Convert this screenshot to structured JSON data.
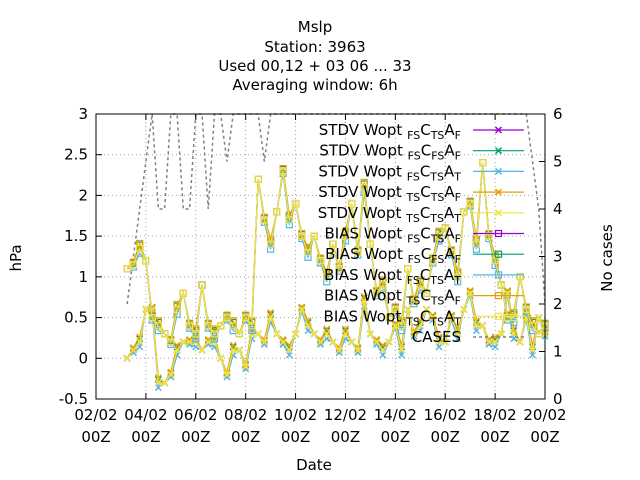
{
  "title_lines": [
    "Mslp",
    "Station:     3963",
    "Used  00,12  + 03 06 ... 33",
    "Averaging window:  6h"
  ],
  "chart_data": {
    "type": "line",
    "title": "Mslp",
    "xlabel": "Date",
    "ylabel": "hPa",
    "y2label": "No cases",
    "xlim": [
      0,
      18
    ],
    "ylim": [
      -0.5,
      3
    ],
    "y2lim": [
      0,
      6
    ],
    "x_unit": "days since 02/02 00Z",
    "xticks": [
      0,
      2,
      4,
      6,
      8,
      10,
      12,
      14,
      16,
      18
    ],
    "xtick_labels": [
      [
        "02/02",
        "00Z"
      ],
      [
        "04/02",
        "00Z"
      ],
      [
        "06/02",
        "00Z"
      ],
      [
        "08/02",
        "00Z"
      ],
      [
        "10/02",
        "00Z"
      ],
      [
        "12/02",
        "00Z"
      ],
      [
        "14/02",
        "00Z"
      ],
      [
        "16/02",
        "00Z"
      ],
      [
        "18/02",
        "00Z"
      ],
      [
        "20/02",
        "00Z"
      ]
    ],
    "yticks": [
      -0.5,
      0,
      0.5,
      1,
      1.5,
      2,
      2.5,
      3
    ],
    "ytick_labels": [
      "-0.5",
      "0",
      "0.5",
      "1",
      "1.5",
      "2",
      "2.5",
      "3"
    ],
    "y2ticks": [
      0,
      1,
      2,
      3,
      4,
      5,
      6
    ],
    "y2tick_labels": [
      "0",
      "1",
      "2",
      "3",
      "4",
      "5",
      "6"
    ],
    "grid": true,
    "legend_position": "top-right",
    "series": [
      {
        "name": "STDV Wopt FS CTS AF",
        "sub": [
          "FS",
          "TS",
          "F"
        ],
        "color": "#9400d3",
        "marker": "x",
        "axis": "y1"
      },
      {
        "name": "STDV Wopt FS CFS AF",
        "sub": [
          "FS",
          "FS",
          "F"
        ],
        "color": "#009e73",
        "marker": "x",
        "axis": "y1"
      },
      {
        "name": "STDV Wopt FS CTS AT",
        "sub": [
          "FS",
          "TS",
          "T"
        ],
        "color": "#56b4e9",
        "marker": "x",
        "axis": "y1"
      },
      {
        "name": "STDV Wopt TS CTS AF",
        "sub": [
          "TS",
          "TS",
          "F"
        ],
        "color": "#e69f00",
        "marker": "x",
        "axis": "y1"
      },
      {
        "name": "STDV Wopt TS CTS AT",
        "sub": [
          "TS",
          "TS",
          "T"
        ],
        "color": "#f0e442",
        "marker": "x",
        "axis": "y1"
      },
      {
        "name": "BIAS Wopt FS CTS AF",
        "sub": [
          "FS",
          "TS",
          "F"
        ],
        "color": "#9400d3",
        "marker": "s",
        "axis": "y1"
      },
      {
        "name": "BIAS Wopt FS CFS AF",
        "sub": [
          "FS",
          "FS",
          "F"
        ],
        "color": "#009e73",
        "marker": "s",
        "axis": "y1"
      },
      {
        "name": "BIAS Wopt FS CTS AT",
        "sub": [
          "FS",
          "TS",
          "T"
        ],
        "color": "#56b4e9",
        "marker": "s",
        "axis": "y1"
      },
      {
        "name": "BIAS Wopt TS CTS AF",
        "sub": [
          "TS",
          "TS",
          "F"
        ],
        "color": "#e69f00",
        "marker": "s",
        "axis": "y1"
      },
      {
        "name": "BIAS Wopt TS CTS AT",
        "sub": [
          "TS",
          "TS",
          "T"
        ],
        "color": "#f0e442",
        "marker": "s",
        "axis": "y1"
      },
      {
        "name": "CASES",
        "color": "#808080",
        "marker": "none",
        "dashed": true,
        "axis": "y2"
      }
    ],
    "stdv_base": {
      "x": [
        1.25,
        1.5,
        1.75,
        2.0,
        2.25,
        2.5,
        2.75,
        3.0,
        3.25,
        3.5,
        3.75,
        4.0,
        4.25,
        4.5,
        4.75,
        5.0,
        5.25,
        5.5,
        5.75,
        6.0,
        6.25,
        6.5,
        6.75,
        7.0,
        7.25,
        7.5,
        7.75,
        8.0,
        8.25,
        8.5,
        8.75,
        9.0,
        9.25,
        9.5,
        9.75,
        10.0,
        10.25,
        10.5,
        10.75,
        11.0,
        11.25,
        11.5,
        11.75,
        12.0,
        12.25,
        12.5,
        12.75,
        13.0,
        13.25,
        13.5,
        13.75,
        14.0,
        14.25,
        14.5,
        14.75,
        15.0,
        15.25,
        15.5,
        15.75,
        16.0,
        16.25,
        16.5,
        16.75,
        17.0,
        17.25,
        17.5,
        17.75,
        18.0
      ],
      "y": [
        0.0,
        0.1,
        0.2,
        0.6,
        0.6,
        -0.3,
        -0.3,
        -0.2,
        0.1,
        0.2,
        0.2,
        0.2,
        0.1,
        0.2,
        0.2,
        0.0,
        -0.2,
        0.1,
        0.1,
        -0.1,
        0.3,
        0.3,
        0.2,
        0.5,
        0.3,
        0.2,
        0.1,
        0.3,
        0.6,
        0.4,
        0.3,
        0.2,
        0.3,
        0.2,
        0.1,
        0.3,
        0.2,
        0.1,
        0.7,
        0.3,
        0.2,
        0.1,
        0.2,
        0.4,
        0.1,
        0.6,
        0.3,
        0.4,
        0.6,
        0.5,
        0.2,
        0.2,
        0.5,
        0.3,
        0.6,
        0.8,
        0.4,
        0.4,
        0.2,
        0.2,
        0.3,
        0.8,
        0.3,
        0.2,
        0.5,
        0.1,
        0.5,
        0.3
      ]
    },
    "bias_base": {
      "x": [
        1.25,
        1.5,
        1.75,
        2.0,
        2.25,
        2.5,
        2.75,
        3.0,
        3.25,
        3.5,
        3.75,
        4.0,
        4.25,
        4.5,
        4.75,
        5.0,
        5.25,
        5.5,
        5.75,
        6.0,
        6.25,
        6.5,
        6.75,
        7.0,
        7.25,
        7.5,
        7.75,
        8.0,
        8.25,
        8.5,
        8.75,
        9.0,
        9.25,
        9.5,
        9.75,
        10.0,
        10.25,
        10.5,
        10.75,
        11.0,
        11.25,
        11.5,
        11.75,
        12.0,
        12.25,
        12.5,
        12.75,
        13.0,
        13.25,
        13.5,
        13.75,
        14.0,
        14.25,
        14.5,
        14.75,
        15.0,
        15.25,
        15.5,
        15.75,
        16.0,
        16.25,
        16.5,
        16.75,
        17.0,
        17.25,
        17.5,
        17.75,
        18.0
      ],
      "y": [
        1.1,
        1.15,
        1.35,
        1.2,
        0.5,
        0.4,
        0.3,
        0.2,
        0.6,
        0.8,
        0.4,
        0.3,
        0.9,
        0.4,
        0.3,
        0.4,
        0.5,
        0.4,
        0.3,
        0.5,
        0.4,
        2.2,
        1.7,
        1.4,
        1.8,
        2.3,
        1.7,
        1.9,
        1.5,
        1.3,
        1.5,
        1.2,
        1.0,
        1.4,
        1.1,
        1.5,
        1.9,
        1.3,
        2.1,
        1.4,
        0.8,
        0.9,
        0.5,
        0.6,
        0.4,
        1.1,
        0.7,
        0.9,
        0.8,
        1.2,
        1.5,
        1.6,
        1.3,
        1.0,
        1.8,
        1.9,
        1.4,
        2.4,
        1.5,
        1.2,
        0.9,
        0.5,
        0.5,
        1.0,
        0.6,
        0.4,
        0.3,
        0.4
      ]
    },
    "cases": {
      "x": [
        1.25,
        1.5,
        1.75,
        2.0,
        2.25,
        2.5,
        2.75,
        3.0,
        3.25,
        3.5,
        3.75,
        4.0,
        4.25,
        4.5,
        4.75,
        5.0,
        5.25,
        5.5,
        5.75,
        6.0,
        6.25,
        6.5,
        6.75,
        7.0,
        7.25,
        7.5,
        7.75,
        8.0,
        8.25,
        8.5,
        8.75,
        9.0,
        9.25,
        9.5,
        9.75,
        10.0,
        10.25,
        10.5,
        10.75,
        11.0,
        11.25,
        11.5,
        11.75,
        12.0,
        12.25,
        12.5,
        12.75,
        13.0,
        13.25,
        13.5,
        13.75,
        14.0,
        14.25,
        14.5,
        14.75,
        15.0,
        15.25,
        15.5,
        15.75,
        16.0,
        16.25,
        16.5,
        16.75,
        17.0,
        17.25,
        17.5,
        17.75,
        18.0
      ],
      "y": [
        2,
        3,
        4,
        5,
        6,
        4,
        4,
        6,
        6,
        4,
        4,
        6,
        6,
        4,
        6,
        6,
        5,
        6,
        6,
        6,
        6,
        6,
        5,
        6,
        6,
        6,
        6,
        6,
        6,
        6,
        6,
        6,
        6,
        6,
        6,
        6,
        6,
        6,
        6,
        6,
        6,
        6,
        6,
        6,
        6,
        6,
        6,
        6,
        6,
        6,
        6,
        6,
        6,
        6,
        6,
        6,
        6,
        6,
        6,
        6,
        6,
        6,
        6,
        6,
        6,
        5,
        4,
        2
      ]
    }
  }
}
